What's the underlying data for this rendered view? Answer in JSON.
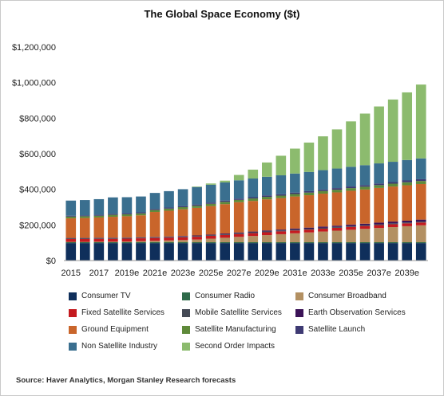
{
  "chart_data": {
    "type": "bar",
    "stacked": true,
    "title": "The Global Space Economy ($t)",
    "xlabel": "",
    "ylabel": "",
    "ylim": [
      0,
      1200000
    ],
    "yticks": [
      "$0",
      "$200,000",
      "$400,000",
      "$600,000",
      "$800,000",
      "$1,000,000",
      "$1,200,000"
    ],
    "grid": false,
    "legend_position": "bottom",
    "x_tick_labels": [
      "2015",
      "2017",
      "2019e",
      "2021e",
      "2023e",
      "2025e",
      "2027e",
      "2029e",
      "2031e",
      "2033e",
      "2035e",
      "2037e",
      "2039e"
    ],
    "categories": [
      "2015",
      "2016",
      "2017",
      "2018",
      "2019e",
      "2020e",
      "2021e",
      "2022e",
      "2023e",
      "2024e",
      "2025e",
      "2026e",
      "2027e",
      "2028e",
      "2029e",
      "2030e",
      "2031e",
      "2032e",
      "2033e",
      "2034e",
      "2035e",
      "2036e",
      "2037e",
      "2038e",
      "2039e",
      "2040e"
    ],
    "series": [
      {
        "name": "Consumer TV",
        "color": "#0f2f5b",
        "values": [
          98000,
          98000,
          98000,
          98000,
          98000,
          98000,
          98000,
          98000,
          98000,
          98000,
          98000,
          98000,
          98000,
          98000,
          98000,
          98000,
          98000,
          98000,
          98000,
          98000,
          98000,
          98000,
          98000,
          98000,
          98000,
          98000
        ]
      },
      {
        "name": "Consumer Radio",
        "color": "#2e6a4a",
        "values": [
          5000,
          5000,
          5000,
          5000,
          5000,
          5000,
          5000,
          5000,
          5000,
          5000,
          5000,
          5000,
          5000,
          5000,
          5000,
          5000,
          5000,
          5000,
          5000,
          5000,
          5000,
          5000,
          5000,
          5000,
          5000,
          5000
        ]
      },
      {
        "name": "Consumer Broadband",
        "color": "#b39062",
        "values": [
          2000,
          2000,
          3000,
          3000,
          4000,
          6000,
          8000,
          10000,
          12000,
          15000,
          20000,
          25000,
          30000,
          35000,
          40000,
          45000,
          50000,
          55000,
          60000,
          65000,
          70000,
          75000,
          80000,
          85000,
          90000,
          95000
        ]
      },
      {
        "name": "Fixed Satellite Services",
        "color": "#c41a1f",
        "values": [
          16000,
          16000,
          16000,
          16000,
          16000,
          16000,
          16000,
          16000,
          16000,
          16000,
          16000,
          16000,
          16000,
          16000,
          16000,
          16000,
          16000,
          16000,
          16000,
          16000,
          16000,
          16000,
          16000,
          16000,
          16000,
          16000
        ]
      },
      {
        "name": "Mobile Satellite Services",
        "color": "#444a55",
        "values": [
          4000,
          4000,
          4000,
          4000,
          4000,
          4000,
          4000,
          4000,
          4000,
          4000,
          4000,
          4000,
          5000,
          5000,
          5000,
          5000,
          5000,
          5000,
          5000,
          5000,
          5000,
          5000,
          5000,
          5000,
          5000,
          5000
        ]
      },
      {
        "name": "Earth Observation Services",
        "color": "#3b1257",
        "values": [
          2000,
          2000,
          2000,
          2000,
          2000,
          2000,
          2000,
          2000,
          3000,
          3000,
          3000,
          4000,
          4000,
          4000,
          5000,
          5000,
          6000,
          6000,
          7000,
          7000,
          8000,
          8000,
          9000,
          10000,
          10000,
          11000
        ]
      },
      {
        "name": "Ground Equipment",
        "color": "#c9652b",
        "values": [
          110000,
          112000,
          114000,
          118000,
          120000,
          123000,
          140000,
          145000,
          150000,
          155000,
          160000,
          165000,
          170000,
          172000,
          175000,
          177000,
          180000,
          182000,
          185000,
          187000,
          190000,
          192000,
          195000,
          197000,
          199000,
          200000
        ]
      },
      {
        "name": "Satellite Manufacturing",
        "color": "#5f8a3a",
        "values": [
          10000,
          10000,
          10000,
          11000,
          11000,
          11000,
          11000,
          12000,
          12000,
          12000,
          13000,
          13000,
          13000,
          14000,
          14000,
          14000,
          14000,
          15000,
          15000,
          15000,
          15000,
          16000,
          16000,
          16000,
          17000,
          17000
        ]
      },
      {
        "name": "Satellite Launch",
        "color": "#3e3a73",
        "values": [
          5000,
          5000,
          5000,
          6000,
          6000,
          6000,
          6000,
          6000,
          6000,
          7000,
          7000,
          7000,
          7000,
          7000,
          8000,
          8000,
          8000,
          8000,
          8000,
          9000,
          9000,
          9000,
          9000,
          9000,
          10000,
          10000
        ]
      },
      {
        "name": "Non Satellite Industry",
        "color": "#3a6f8f",
        "values": [
          85000,
          86000,
          88000,
          92000,
          90000,
          89000,
          90000,
          92000,
          95000,
          98000,
          100000,
          102000,
          103000,
          105000,
          105000,
          106000,
          107000,
          108000,
          109000,
          110000,
          111000,
          112000,
          113000,
          114000,
          115000,
          117000
        ]
      },
      {
        "name": "Second Order Impacts",
        "color": "#8cbb6e",
        "values": [
          0,
          0,
          0,
          0,
          0,
          0,
          0,
          0,
          0,
          3000,
          7000,
          10000,
          30000,
          50000,
          80000,
          110000,
          140000,
          165000,
          190000,
          220000,
          255000,
          290000,
          320000,
          350000,
          380000,
          415000
        ]
      }
    ]
  },
  "source_text": "Source: Haver Analytics, Morgan Stanley Research forecasts"
}
